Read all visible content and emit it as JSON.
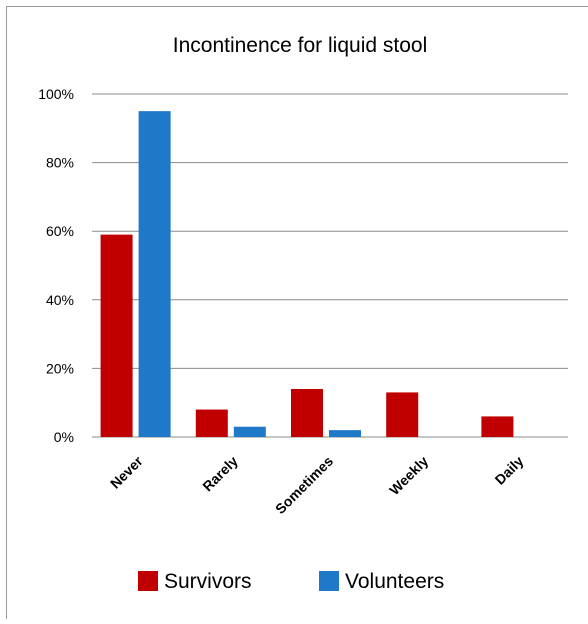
{
  "chart_data": {
    "type": "bar",
    "title": "Incontinence for liquid stool",
    "categories": [
      "Never",
      "Rarely",
      "Sometimes",
      "Weekly",
      "Daily"
    ],
    "series": [
      {
        "name": "Survivors",
        "values": [
          59,
          8,
          14,
          13,
          6
        ],
        "color": "#C00000"
      },
      {
        "name": "Volunteers",
        "values": [
          95,
          3,
          2,
          0,
          0
        ],
        "color": "#1F78C8"
      }
    ],
    "y_ticks": [
      "0%",
      "20%",
      "40%",
      "60%",
      "80%",
      "100%"
    ],
    "ylim": [
      0,
      100
    ],
    "grid": true,
    "legend_position": "bottom"
  }
}
